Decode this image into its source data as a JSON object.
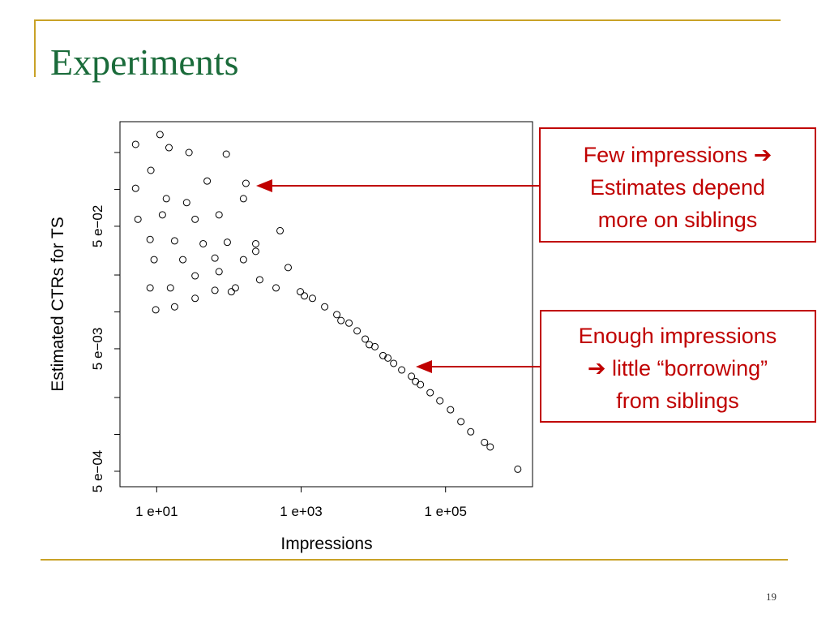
{
  "title": "Experiments",
  "page_number": "19",
  "annotations": [
    {
      "lines": [
        "Few impressions ➔",
        "Estimates depend",
        "more on siblings"
      ]
    },
    {
      "lines": [
        "Enough impressions",
        "➔ little “borrowing”",
        "from siblings"
      ]
    }
  ],
  "chart_data": {
    "type": "scatter",
    "xlabel": "Impressions",
    "ylabel": "Estimated CTRs for TS",
    "xlog": true,
    "ylog": true,
    "color": "#000000",
    "xlim": [
      3.1,
      1600000
    ],
    "ylim": [
      0.000374,
      0.357
    ],
    "xticks": [
      {
        "value": 10,
        "label": "1  e+01"
      },
      {
        "value": 1000,
        "label": "1  e+03"
      },
      {
        "value": 100000,
        "label": "1  e+05"
      }
    ],
    "yticks": [
      {
        "value": 0.0005,
        "label": "5  e−04"
      },
      {
        "value": 0.005,
        "label": "5  e−03"
      },
      {
        "value": 0.05,
        "label": "5  e−02"
      }
    ],
    "yminorticks": [
      0.001,
      0.002,
      0.01,
      0.02,
      0.1,
      0.2
    ],
    "x": [
      5.1,
      11.1,
      14.8,
      8.3,
      28,
      92,
      172,
      5.1,
      50,
      26,
      5.5,
      12,
      34,
      73,
      159,
      8.1,
      17.7,
      44,
      95,
      235,
      511,
      9.2,
      23,
      64,
      159,
      8.1,
      15.5,
      34,
      64,
      123,
      9.7,
      17.7,
      34,
      108,
      267,
      449,
      661,
      235,
      73,
      13.6,
      975,
      1435,
      2120,
      3120,
      4600,
      5960,
      7720,
      10500,
      13600,
      19100,
      24700,
      33700,
      44800,
      61200,
      83400,
      117000,
      163000,
      223000,
      346000,
      415000,
      1000000,
      1110,
      3560,
      8790,
      15900,
      38400
    ],
    "y": [
      0.233,
      0.28,
      0.219,
      0.143,
      0.2,
      0.194,
      0.112,
      0.102,
      0.117,
      0.078,
      0.057,
      0.062,
      0.057,
      0.062,
      0.084,
      0.039,
      0.038,
      0.036,
      0.037,
      0.036,
      0.046,
      0.0267,
      0.0267,
      0.0275,
      0.0267,
      0.0157,
      0.0157,
      0.0197,
      0.015,
      0.0157,
      0.0104,
      0.011,
      0.0129,
      0.0146,
      0.0183,
      0.0157,
      0.023,
      0.0312,
      0.0213,
      0.084,
      0.0146,
      0.0129,
      0.011,
      0.0095,
      0.0081,
      0.007,
      0.006,
      0.0052,
      0.0044,
      0.0038,
      0.00336,
      0.00298,
      0.00255,
      0.00219,
      0.00188,
      0.00159,
      0.00127,
      0.00105,
      0.00086,
      0.00079,
      0.00052,
      0.0135,
      0.0085,
      0.0054,
      0.0042,
      0.0027
    ]
  }
}
